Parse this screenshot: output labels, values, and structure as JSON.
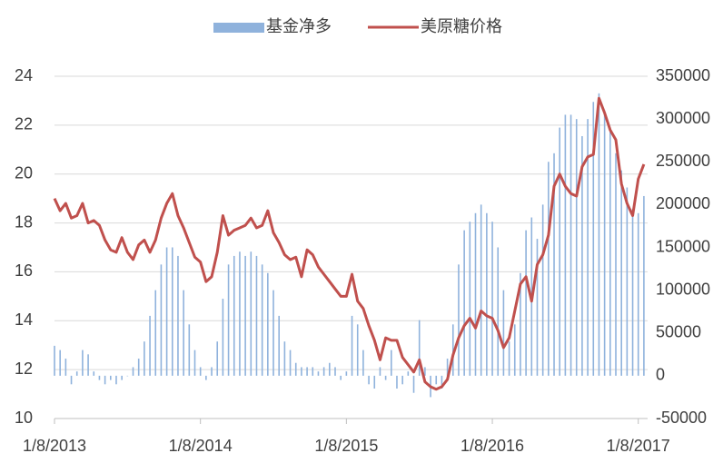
{
  "chart_data": {
    "type": "bar-line",
    "categories": [
      "1/8/2013",
      null,
      null,
      null,
      null,
      null,
      null,
      null,
      null,
      null,
      null,
      null,
      null,
      null,
      null,
      null,
      null,
      null,
      null,
      null,
      null,
      null,
      null,
      null,
      null,
      null,
      "1/8/2014",
      null,
      null,
      null,
      null,
      null,
      null,
      null,
      null,
      null,
      null,
      null,
      null,
      null,
      null,
      null,
      null,
      null,
      null,
      null,
      null,
      null,
      null,
      null,
      null,
      null,
      "1/8/2015",
      null,
      null,
      null,
      null,
      null,
      null,
      null,
      null,
      null,
      null,
      null,
      null,
      null,
      null,
      null,
      null,
      null,
      null,
      null,
      null,
      null,
      null,
      null,
      null,
      null,
      "1/8/2016",
      null,
      null,
      null,
      null,
      null,
      null,
      null,
      null,
      null,
      null,
      null,
      null,
      null,
      null,
      null,
      null,
      null,
      null,
      null,
      null,
      null,
      null,
      null,
      null,
      null,
      "1/8/2017",
      null
    ],
    "series": [
      {
        "name": "基金净多",
        "type": "bar",
        "axis": "y2",
        "color": "#8fb2dc",
        "values": [
          35000,
          30000,
          20000,
          -10000,
          5000,
          30000,
          25000,
          5000,
          -5000,
          -10000,
          -5000,
          -10000,
          -5000,
          0,
          10000,
          20000,
          40000,
          70000,
          100000,
          130000,
          150000,
          150000,
          140000,
          100000,
          60000,
          30000,
          10000,
          -5000,
          10000,
          40000,
          90000,
          130000,
          140000,
          145000,
          140000,
          145000,
          140000,
          130000,
          120000,
          100000,
          70000,
          40000,
          30000,
          15000,
          10000,
          10000,
          10000,
          5000,
          10000,
          15000,
          10000,
          -5000,
          5000,
          70000,
          60000,
          30000,
          -10000,
          -15000,
          10000,
          -5000,
          30000,
          -15000,
          -10000,
          5000,
          -20000,
          65000,
          10000,
          -25000,
          -10000,
          -15000,
          20000,
          60000,
          130000,
          170000,
          180000,
          190000,
          200000,
          190000,
          180000,
          150000,
          100000,
          40000,
          60000,
          120000,
          170000,
          185000,
          160000,
          200000,
          250000,
          260000,
          290000,
          305000,
          305000,
          300000,
          280000,
          300000,
          320000,
          330000,
          310000,
          290000,
          260000,
          240000,
          220000,
          195000,
          190000,
          210000
        ]
      },
      {
        "name": "美原糖价格",
        "type": "line",
        "axis": "y",
        "color": "#c0504d",
        "values": [
          19.0,
          18.5,
          18.8,
          18.2,
          18.3,
          18.8,
          18.0,
          18.1,
          17.9,
          17.3,
          16.9,
          16.8,
          17.4,
          16.8,
          16.5,
          17.1,
          17.3,
          16.8,
          17.3,
          18.2,
          18.8,
          19.2,
          18.3,
          17.8,
          17.2,
          16.6,
          16.4,
          15.6,
          15.8,
          16.8,
          18.3,
          17.5,
          17.7,
          17.8,
          17.9,
          18.2,
          17.8,
          17.9,
          18.5,
          17.6,
          17.2,
          16.7,
          16.5,
          16.6,
          15.8,
          16.9,
          16.7,
          16.2,
          15.9,
          15.6,
          15.3,
          15.0,
          15.0,
          15.9,
          14.8,
          14.5,
          13.8,
          13.2,
          12.4,
          13.3,
          13.2,
          13.2,
          12.5,
          12.2,
          11.9,
          12.4,
          11.5,
          11.3,
          11.2,
          11.3,
          11.6,
          12.6,
          13.3,
          13.8,
          14.1,
          13.7,
          14.4,
          14.2,
          14.1,
          13.6,
          12.9,
          13.3,
          14.4,
          15.5,
          15.8,
          14.8,
          16.3,
          16.7,
          17.5,
          19.5,
          20.0,
          19.5,
          19.2,
          19.1,
          20.3,
          20.7,
          20.8,
          23.1,
          22.5,
          21.8,
          21.4,
          19.6,
          18.8,
          18.3,
          19.8,
          20.4
        ]
      }
    ],
    "ylim": [
      10,
      24
    ],
    "yticks": [
      10,
      12,
      14,
      16,
      18,
      20,
      22,
      24
    ],
    "y2lim": [
      -50000,
      350000
    ],
    "y2ticks": [
      -50000,
      0,
      50000,
      100000,
      150000,
      200000,
      250000,
      300000,
      350000
    ],
    "grid": true,
    "legend": "top"
  }
}
